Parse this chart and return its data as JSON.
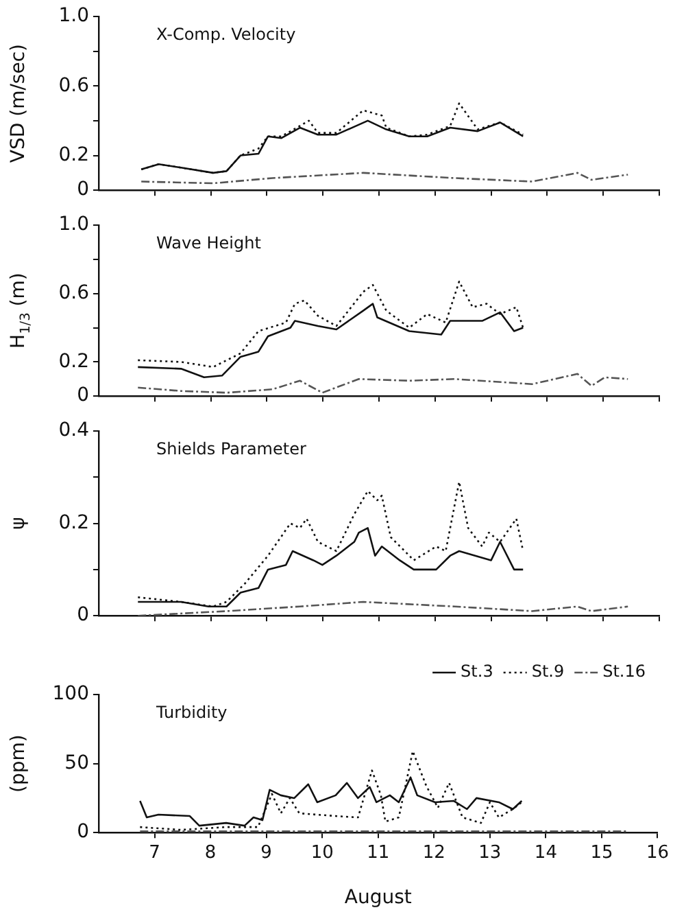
{
  "chart_data": [
    {
      "type": "line",
      "title": "X-Comp. Velocity",
      "ylabel": "VSD (m/sec)",
      "xlim": [
        6,
        16
      ],
      "xticks": [
        7,
        8,
        9,
        10,
        11,
        12,
        13,
        14,
        15,
        16
      ],
      "ylim": [
        0,
        1
      ],
      "yticks": [
        0,
        0.2,
        {
          "value": 0.4,
          "label": null
        },
        0.6,
        {
          "value": 0.8,
          "label": null
        },
        {
          "value": 1,
          "label": "1.0"
        }
      ],
      "tick_labels": "y",
      "grid": false,
      "legend": false,
      "marker": "none",
      "series": [
        {
          "color": "#111111",
          "line_style": "solid",
          "x": [
            6.76,
            7.07,
            7.47,
            8.04,
            8.28,
            8.53,
            8.85,
            9.02,
            9.26,
            9.59,
            9.91,
            10.24,
            10.8,
            11.13,
            11.54,
            11.86,
            12.27,
            12.76,
            13.16,
            13.57
          ],
          "values": [
            0.12,
            0.15,
            0.13,
            0.1,
            0.11,
            0.2,
            0.21,
            0.31,
            0.3,
            0.36,
            0.32,
            0.32,
            0.4,
            0.35,
            0.31,
            0.31,
            0.36,
            0.34,
            0.39,
            0.31
          ]
        },
        {
          "color": "#111111",
          "line_style": "dotted",
          "x": [
            6.76,
            7.07,
            7.47,
            8.04,
            8.28,
            8.53,
            8.85,
            9.02,
            9.26,
            9.75,
            9.91,
            10.24,
            10.72,
            11.05,
            11.13,
            11.54,
            11.86,
            12.27,
            12.43,
            12.76,
            13.16,
            13.57
          ],
          "values": [
            0.12,
            0.15,
            0.13,
            0.1,
            0.11,
            0.2,
            0.24,
            0.31,
            0.31,
            0.4,
            0.33,
            0.33,
            0.46,
            0.43,
            0.36,
            0.31,
            0.32,
            0.37,
            0.5,
            0.35,
            0.39,
            0.32
          ]
        },
        {
          "color": "#555555",
          "line_style": "dashed",
          "x": [
            6.76,
            8.04,
            9.1,
            10.72,
            12.35,
            13.73,
            14.54,
            14.79,
            15.44
          ],
          "values": [
            0.05,
            0.04,
            0.07,
            0.1,
            0.07,
            0.05,
            0.1,
            0.06,
            0.09
          ]
        }
      ]
    },
    {
      "type": "line",
      "title": "Wave Height",
      "ylabel": "H$_{1/3}$ (m)",
      "xlim": [
        6,
        16
      ],
      "xticks": [
        7,
        8,
        9,
        10,
        11,
        12,
        13,
        14,
        15,
        16
      ],
      "ylim": [
        0,
        1
      ],
      "yticks": [
        0,
        0.2,
        {
          "value": 0.4,
          "label": null
        },
        0.6,
        {
          "value": 0.8,
          "label": null
        },
        {
          "value": 1,
          "label": "1.0"
        }
      ],
      "tick_labels": "y",
      "grid": false,
      "legend": false,
      "marker": "none",
      "series": [
        {
          "color": "#111111",
          "line_style": "solid",
          "x": [
            6.7,
            7.47,
            7.88,
            8.2,
            8.53,
            8.85,
            9.02,
            9.42,
            9.5,
            9.91,
            10.24,
            10.72,
            10.89,
            10.97,
            11.54,
            12.11,
            12.27,
            12.84,
            13.16,
            13.41,
            13.57
          ],
          "values": [
            0.17,
            0.16,
            0.11,
            0.12,
            0.23,
            0.26,
            0.35,
            0.4,
            0.44,
            0.41,
            0.39,
            0.5,
            0.54,
            0.46,
            0.38,
            0.36,
            0.44,
            0.44,
            0.49,
            0.38,
            0.4
          ]
        },
        {
          "color": "#111111",
          "line_style": "dotted",
          "x": [
            6.7,
            7.47,
            8.04,
            8.53,
            8.85,
            9.34,
            9.5,
            9.67,
            9.91,
            10.24,
            10.72,
            10.89,
            11.13,
            11.54,
            11.86,
            12.19,
            12.43,
            12.67,
            12.92,
            13.16,
            13.45,
            13.57
          ],
          "values": [
            0.21,
            0.2,
            0.17,
            0.25,
            0.38,
            0.43,
            0.54,
            0.56,
            0.47,
            0.41,
            0.61,
            0.65,
            0.5,
            0.4,
            0.48,
            0.43,
            0.67,
            0.52,
            0.54,
            0.48,
            0.52,
            0.4
          ]
        },
        {
          "color": "#555555",
          "line_style": "dashed",
          "x": [
            6.7,
            7.47,
            8.28,
            9.1,
            9.59,
            9.99,
            10.64,
            11.54,
            12.35,
            13.73,
            14.54,
            14.79,
            15.03,
            15.44
          ],
          "values": [
            0.05,
            0.03,
            0.02,
            0.04,
            0.09,
            0.02,
            0.1,
            0.09,
            0.1,
            0.07,
            0.13,
            0.06,
            0.11,
            0.1
          ]
        }
      ]
    },
    {
      "type": "line",
      "title": "Shields Parameter",
      "ylabel": "ψ",
      "xlim": [
        6,
        16
      ],
      "xticks": [
        7,
        8,
        9,
        10,
        11,
        12,
        13,
        14,
        15,
        16
      ],
      "ylim": [
        0,
        0.4
      ],
      "yticks": [
        0,
        {
          "value": 0.1,
          "label": null
        },
        0.2,
        {
          "value": 0.3,
          "label": null
        },
        0.4
      ],
      "tick_labels": "y",
      "grid": false,
      "legend": false,
      "marker": "none",
      "series": [
        {
          "color": "#111111",
          "line_style": "solid",
          "x": [
            6.7,
            7.47,
            7.96,
            8.28,
            8.53,
            8.85,
            9.02,
            9.34,
            9.46,
            9.83,
            9.99,
            10.24,
            10.56,
            10.64,
            10.8,
            10.93,
            11.05,
            11.37,
            11.62,
            12.02,
            12.27,
            12.43,
            13.0,
            13.16,
            13.41,
            13.57
          ],
          "values": [
            0.03,
            0.03,
            0.02,
            0.02,
            0.05,
            0.06,
            0.1,
            0.11,
            0.14,
            0.12,
            0.11,
            0.13,
            0.16,
            0.18,
            0.19,
            0.13,
            0.15,
            0.12,
            0.1,
            0.1,
            0.13,
            0.14,
            0.12,
            0.16,
            0.1,
            0.1
          ]
        },
        {
          "color": "#111111",
          "line_style": "dotted",
          "x": [
            6.7,
            7.47,
            8.04,
            8.28,
            8.61,
            9.02,
            9.42,
            9.59,
            9.71,
            9.91,
            10.24,
            10.56,
            10.8,
            10.97,
            11.05,
            11.21,
            11.46,
            11.62,
            12.02,
            12.19,
            12.43,
            12.59,
            12.84,
            12.96,
            13.16,
            13.45,
            13.57
          ],
          "values": [
            0.04,
            0.03,
            0.02,
            0.03,
            0.07,
            0.13,
            0.2,
            0.19,
            0.21,
            0.16,
            0.14,
            0.22,
            0.27,
            0.25,
            0.26,
            0.17,
            0.14,
            0.12,
            0.15,
            0.14,
            0.29,
            0.19,
            0.15,
            0.18,
            0.16,
            0.21,
            0.14
          ]
        },
        {
          "color": "#555555",
          "line_style": "dashed",
          "x": [
            6.7,
            8.28,
            9.59,
            10.72,
            12.35,
            13.73,
            14.54,
            14.79,
            15.44
          ],
          "values": [
            0,
            0.01,
            0.02,
            0.03,
            0.02,
            0.01,
            0.02,
            0.01,
            0.02
          ]
        }
      ]
    },
    {
      "type": "line",
      "title": "Turbidity",
      "ylabel": "(ppm)",
      "xlabel": "August",
      "xlim": [
        6,
        16
      ],
      "xticks": [
        7,
        8,
        9,
        10,
        11,
        12,
        13,
        14,
        15,
        16
      ],
      "ylim": [
        0,
        100
      ],
      "yticks": [
        0,
        50,
        100
      ],
      "grid": false,
      "legend": "top right",
      "marker": "none",
      "series": [
        {
          "name": "St.3",
          "color": "#111111",
          "line_style": "solid",
          "x": [
            6.74,
            6.86,
            7.07,
            7.63,
            7.8,
            8.28,
            8.61,
            8.77,
            8.93,
            9.06,
            9.26,
            9.5,
            9.75,
            9.91,
            10.24,
            10.44,
            10.64,
            10.85,
            10.97,
            11.21,
            11.37,
            11.58,
            11.7,
            12.02,
            12.35,
            12.59,
            12.76,
            13.16,
            13.41,
            13.57
          ],
          "values": [
            23,
            11,
            13,
            12,
            5,
            7,
            5,
            11,
            9,
            31,
            27,
            25,
            35,
            22,
            27,
            36,
            25,
            33,
            22,
            27,
            22,
            40,
            27,
            22,
            23,
            17,
            25,
            22,
            17,
            23
          ]
        },
        {
          "name": "St.9",
          "color": "#111111",
          "line_style": "dotted",
          "x": [
            6.74,
            7.47,
            8.28,
            8.85,
            9.1,
            9.26,
            9.42,
            9.59,
            9.91,
            10.24,
            10.64,
            10.89,
            11.05,
            11.13,
            11.37,
            11.62,
            11.86,
            12.07,
            12.27,
            12.51,
            12.84,
            13.0,
            13.16,
            13.41,
            13.57
          ],
          "values": [
            4,
            2,
            4,
            4,
            28,
            14,
            25,
            14,
            13,
            12,
            11,
            45,
            27,
            8,
            11,
            59,
            34,
            18,
            36,
            11,
            7,
            22,
            11,
            17,
            22
          ]
        },
        {
          "name": "St.16",
          "color": "#555555",
          "line_style": "dashed",
          "x": [
            6.74,
            8.28,
            10.72,
            12.35,
            13.73,
            14.54,
            15.44
          ],
          "values": [
            1,
            1,
            1,
            1,
            1,
            1,
            1
          ]
        }
      ]
    }
  ]
}
